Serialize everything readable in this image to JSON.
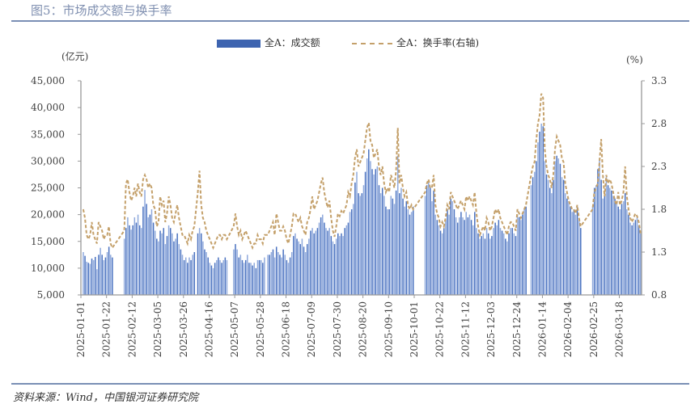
{
  "header": {
    "title": "图5：市场成交额与换手率"
  },
  "footer": {
    "source": "资料来源：Wind，中国银河证券研究院"
  },
  "colors": {
    "bar": "#4a72c0",
    "line": "#c4a06a",
    "axis": "#999999",
    "title": "#7f8fb0"
  },
  "chart_data": {
    "type": "bar+line",
    "left_unit": "(亿元)",
    "right_unit": "(%)",
    "legend": {
      "placement": "top-center",
      "entries": [
        "全A：成交额",
        "全A：换手率(右轴)"
      ]
    },
    "y_left": {
      "range": [
        5000,
        45000
      ],
      "ticks": [
        "5,000",
        "10,000",
        "15,000",
        "20,000",
        "25,000",
        "30,000",
        "35,000",
        "40,000",
        "45,000"
      ]
    },
    "y_right": {
      "range": [
        0.8,
        3.3
      ],
      "ticks": [
        "0.8",
        "1.3",
        "1.8",
        "2.3",
        "2.8",
        "3.3"
      ]
    },
    "x_tick_labels": [
      "2025-01-01",
      "2025-01-22",
      "2025-02-12",
      "2025-03-05",
      "2025-03-26",
      "2025-04-16",
      "2025-05-07",
      "2025-05-28",
      "2025-06-18",
      "2025-07-09",
      "2025-07-30",
      "2025-08-20",
      "2025-09-10",
      "2025-10-01",
      "2025-10-22",
      "2025-11-12",
      "2025-12-03",
      "2025-12-24",
      "2026-01-14",
      "2026-02-04",
      "2026-02-25",
      "2026-03-18"
    ],
    "grid": false,
    "x": [
      "2025-01-01",
      "2025-01-02",
      "2025-01-03",
      "2025-01-06",
      "2025-01-07",
      "2025-01-08",
      "2025-01-09",
      "2025-01-10",
      "2025-01-13",
      "2025-01-14",
      "2025-01-15",
      "2025-01-16",
      "2025-01-17",
      "2025-01-20",
      "2025-01-21",
      "2025-01-22",
      "2025-01-23",
      "2025-01-24",
      "2025-01-27",
      "2025-01-28",
      "2025-01-29",
      "2025-01-30",
      "2025-01-31",
      "2025-02-03",
      "2025-02-04",
      "2025-02-05",
      "2025-02-06",
      "2025-02-07",
      "2025-02-10",
      "2025-02-11",
      "2025-02-12",
      "2025-02-13",
      "2025-02-14",
      "2025-02-17",
      "2025-02-18",
      "2025-02-19",
      "2025-02-20",
      "2025-02-21",
      "2025-02-24",
      "2025-02-25",
      "2025-02-26",
      "2025-02-27",
      "2025-02-28",
      "2025-03-03",
      "2025-03-04",
      "2025-03-05",
      "2025-03-06",
      "2025-03-07",
      "2025-03-10",
      "2025-03-11",
      "2025-03-12",
      "2025-03-13",
      "2025-03-14",
      "2025-03-17",
      "2025-03-18",
      "2025-03-19",
      "2025-03-20",
      "2025-03-21",
      "2025-03-24",
      "2025-03-25",
      "2025-03-26",
      "2025-03-27",
      "2025-03-28",
      "2025-03-31",
      "2025-04-01",
      "2025-04-02",
      "2025-04-03",
      "2025-04-04",
      "2025-04-07",
      "2025-04-08",
      "2025-04-09",
      "2025-04-10",
      "2025-04-11",
      "2025-04-14",
      "2025-04-15",
      "2025-04-16",
      "2025-04-17",
      "2025-04-18",
      "2025-04-21",
      "2025-04-22",
      "2025-04-23",
      "2025-04-24",
      "2025-04-25",
      "2025-04-28",
      "2025-04-29",
      "2025-04-30",
      "2025-05-01",
      "2025-05-02",
      "2025-05-05",
      "2025-05-06",
      "2025-05-07",
      "2025-05-08",
      "2025-05-09",
      "2025-05-12",
      "2025-05-13",
      "2025-05-14",
      "2025-05-15",
      "2025-05-16",
      "2025-05-19",
      "2025-05-20",
      "2025-05-21",
      "2025-05-22",
      "2025-05-23",
      "2025-05-26",
      "2025-05-27",
      "2025-05-28",
      "2025-05-29",
      "2025-05-30",
      "2025-06-02",
      "2025-06-03",
      "2025-06-04",
      "2025-06-05",
      "2025-06-06",
      "2025-06-09",
      "2025-06-10",
      "2025-06-11",
      "2025-06-12",
      "2025-06-13",
      "2025-06-16",
      "2025-06-17",
      "2025-06-18",
      "2025-06-19",
      "2025-06-20",
      "2025-06-23",
      "2025-06-24",
      "2025-06-25",
      "2025-06-26",
      "2025-06-27",
      "2025-06-30",
      "2025-07-01",
      "2025-07-02",
      "2025-07-03",
      "2025-07-04",
      "2025-07-07",
      "2025-07-08",
      "2025-07-09",
      "2025-07-10",
      "2025-07-11",
      "2025-07-14",
      "2025-07-15",
      "2025-07-16",
      "2025-07-17",
      "2025-07-18",
      "2025-07-21",
      "2025-07-22",
      "2025-07-23",
      "2025-07-24",
      "2025-07-25",
      "2025-07-28",
      "2025-07-29",
      "2025-07-30",
      "2025-07-31",
      "2025-08-01",
      "2025-08-04",
      "2025-08-05",
      "2025-08-06",
      "2025-08-07",
      "2025-08-08",
      "2025-08-11",
      "2025-08-12",
      "2025-08-13",
      "2025-08-14",
      "2025-08-15",
      "2025-08-18",
      "2025-08-19",
      "2025-08-20",
      "2025-08-21",
      "2025-08-22",
      "2025-08-25",
      "2025-08-26",
      "2025-08-27",
      "2025-08-28",
      "2025-08-29",
      "2025-09-01",
      "2025-09-02",
      "2025-09-03",
      "2025-09-04",
      "2025-09-05",
      "2025-09-08",
      "2025-09-09",
      "2025-09-10",
      "2025-09-11",
      "2025-09-12",
      "2025-09-15",
      "2025-09-16",
      "2025-09-17",
      "2025-09-18",
      "2025-09-19",
      "2025-09-22",
      "2025-09-23",
      "2025-09-24",
      "2025-09-25",
      "2025-09-26",
      "2025-09-29",
      "2025-09-30",
      "2025-10-01",
      "2025-10-02",
      "2025-10-03",
      "2025-10-06",
      "2025-10-07",
      "2025-10-08",
      "2025-10-09",
      "2025-10-10",
      "2025-10-13",
      "2025-10-14",
      "2025-10-15",
      "2025-10-16",
      "2025-10-17",
      "2025-10-20",
      "2025-10-21",
      "2025-10-22",
      "2025-10-23",
      "2025-10-24",
      "2025-10-27",
      "2025-10-28",
      "2025-10-29",
      "2025-10-30",
      "2025-10-31",
      "2025-11-03",
      "2025-11-04",
      "2025-11-05",
      "2025-11-06",
      "2025-11-07",
      "2025-11-10",
      "2025-11-11",
      "2025-11-12",
      "2025-11-13",
      "2025-11-14",
      "2025-11-17",
      "2025-11-18",
      "2025-11-19",
      "2025-11-20",
      "2025-11-21",
      "2025-11-24",
      "2025-11-25",
      "2025-11-26",
      "2025-11-27",
      "2025-11-28",
      "2025-12-01",
      "2025-12-02",
      "2025-12-03",
      "2025-12-04",
      "2025-12-05",
      "2025-12-08",
      "2025-12-09",
      "2025-12-10",
      "2025-12-11",
      "2025-12-12",
      "2025-12-15",
      "2025-12-16",
      "2025-12-17",
      "2025-12-18",
      "2025-12-19",
      "2025-12-22",
      "2025-12-23",
      "2025-12-24",
      "2025-12-25",
      "2025-12-26",
      "2025-12-29",
      "2025-12-30",
      "2025-12-31",
      "2026-01-01",
      "2026-01-02",
      "2026-01-05",
      "2026-01-06",
      "2026-01-07",
      "2026-01-08",
      "2026-01-09",
      "2026-01-12",
      "2026-01-13",
      "2026-01-14",
      "2026-01-15",
      "2026-01-16",
      "2026-01-19",
      "2026-01-20",
      "2026-01-21",
      "2026-01-22",
      "2026-01-23",
      "2026-01-26",
      "2026-01-27",
      "2026-01-28",
      "2026-01-29",
      "2026-01-30",
      "2026-02-02",
      "2026-02-03",
      "2026-02-04",
      "2026-02-05",
      "2026-02-06",
      "2026-02-09",
      "2026-02-10",
      "2026-02-11",
      "2026-02-12",
      "2026-02-13",
      "2026-02-16",
      "2026-02-17",
      "2026-02-18",
      "2026-02-19",
      "2026-02-20",
      "2026-02-23",
      "2026-02-24",
      "2026-02-25",
      "2026-02-26",
      "2026-02-27",
      "2026-03-02",
      "2026-03-03",
      "2026-03-04",
      "2026-03-05",
      "2026-03-06",
      "2026-03-09",
      "2026-03-10",
      "2026-03-11",
      "2026-03-12",
      "2026-03-13",
      "2026-03-16",
      "2026-03-17",
      "2026-03-18",
      "2026-03-19",
      "2026-03-20",
      "2026-03-23",
      "2026-03-24",
      "2026-03-25",
      "2026-03-26",
      "2026-03-27",
      "2026-03-30",
      "2026-03-31",
      "2026-04-01",
      "2026-04-02",
      "2026-04-03"
    ],
    "series": [
      {
        "name": "全A：成交额",
        "type": "bar",
        "axis": "left",
        "values": [
          null,
          13000,
          12300,
          11200,
          11000,
          10800,
          11800,
          11500,
          12100,
          9800,
          12500,
          13800,
          12500,
          11500,
          12000,
          13000,
          14000,
          12500,
          12000,
          null,
          null,
          null,
          null,
          null,
          null,
          15500,
          17500,
          19500,
          18000,
          17200,
          18000,
          19500,
          18500,
          20000,
          18000,
          17500,
          21500,
          24600,
          22000,
          19500,
          20000,
          21000,
          18500,
          17000,
          15500,
          15000,
          17000,
          16500,
          17500,
          14500,
          16000,
          18000,
          17500,
          16500,
          15000,
          15500,
          16500,
          14500,
          13500,
          12500,
          11500,
          12000,
          11000,
          12000,
          11500,
          12500,
          13000,
          null,
          16500,
          17500,
          16500,
          15000,
          13500,
          13000,
          12000,
          11000,
          10500,
          10000,
          11000,
          11500,
          12000,
          11500,
          11000,
          11500,
          12000,
          11500,
          null,
          null,
          null,
          13500,
          14500,
          13500,
          12000,
          12500,
          11500,
          11000,
          11500,
          12500,
          11000,
          11000,
          10500,
          11000,
          10000,
          11500,
          11500,
          11500,
          11000,
          12000,
          null,
          12500,
          12500,
          13000,
          13500,
          12000,
          14000,
          13000,
          12500,
          12000,
          13500,
          12500,
          11500,
          11000,
          12000,
          13000,
          16000,
          16500,
          15500,
          15000,
          14500,
          15500,
          14000,
          13000,
          14500,
          15500,
          17000,
          17500,
          16500,
          17000,
          17500,
          18500,
          19500,
          20000,
          18500,
          17500,
          17000,
          17500,
          16000,
          15000,
          14500,
          15500,
          16500,
          16000,
          16500,
          16000,
          17500,
          18000,
          18500,
          20500,
          21000,
          22000,
          26000,
          28000,
          24000,
          23500,
          24000,
          25500,
          28000,
          30500,
          32200,
          30000,
          28500,
          27500,
          28500,
          29000,
          25500,
          24000,
          25000,
          23500,
          21500,
          21000,
          21000,
          23500,
          23000,
          22000,
          24500,
          31000,
          24000,
          25000,
          23000,
          21500,
          22500,
          21000,
          20000,
          20500,
          21500,
          null,
          null,
          null,
          null,
          null,
          null,
          23500,
          25500,
          26000,
          25000,
          22500,
          24500,
          20000,
          19000,
          18000,
          17000,
          16500,
          17500,
          19000,
          21000,
          20000,
          23000,
          22500,
          21000,
          19500,
          18500,
          19500,
          20500,
          19500,
          19000,
          20500,
          19500,
          20000,
          19000,
          18000,
          20500,
          17500,
          16500,
          15500,
          16000,
          16500,
          15500,
          17500,
          16500,
          15500,
          16000,
          17500,
          18500,
          18000,
          19000,
          17500,
          17000,
          16500,
          15500,
          15000,
          16500,
          17500,
          17500,
          16500,
          16000,
          20000,
          19500,
          19000,
          20000,
          21000,
          21500,
          null,
          null,
          25500,
          27000,
          28000,
          30000,
          33500,
          35500,
          37000,
          36500,
          30000,
          27500,
          26500,
          25000,
          24000,
          26500,
          30000,
          31000,
          30500,
          29500,
          27000,
          26500,
          24000,
          23000,
          22500,
          21500,
          20500,
          21000,
          20000,
          21500,
          19000,
          17500,
          null,
          null,
          null,
          null,
          null,
          null,
          21500,
          25000,
          25500,
          28500,
          30500,
          26500,
          23000,
          24000,
          27000,
          25500,
          25000,
          24500,
          23500,
          23000,
          22000,
          21500,
          21000,
          22000,
          22500,
          24000,
          21000,
          20000,
          18500,
          18000,
          18500,
          19000,
          19500,
          18000,
          16500
        ]
      },
      {
        "name": "全A：换手率(右轴)",
        "type": "line",
        "axis": "right",
        "values": [
          null,
          1.8,
          1.7,
          1.5,
          1.45,
          1.5,
          1.65,
          1.5,
          1.45,
          1.4,
          1.65,
          1.6,
          1.55,
          1.45,
          1.5,
          1.5,
          1.6,
          1.4,
          1.35,
          null,
          null,
          null,
          null,
          null,
          null,
          1.55,
          2.1,
          2.15,
          2.0,
          1.9,
          1.95,
          2.05,
          1.95,
          2.1,
          2.0,
          1.95,
          2.15,
          2.2,
          2.15,
          2.05,
          2.1,
          2.05,
          1.85,
          1.8,
          1.6,
          1.65,
          1.95,
          1.85,
          1.9,
          1.65,
          1.75,
          1.95,
          1.85,
          1.7,
          1.65,
          1.75,
          1.85,
          1.7,
          1.6,
          1.5,
          1.5,
          1.45,
          1.4,
          1.5,
          1.45,
          1.55,
          1.6,
          null,
          2.0,
          2.25,
          1.85,
          1.7,
          1.65,
          1.55,
          1.5,
          1.45,
          1.4,
          1.35,
          1.4,
          1.45,
          1.5,
          1.5,
          1.45,
          1.5,
          1.5,
          1.45,
          null,
          null,
          null,
          1.6,
          1.75,
          1.6,
          1.5,
          1.55,
          1.45,
          1.5,
          1.55,
          1.5,
          1.45,
          1.4,
          1.35,
          1.4,
          1.4,
          1.5,
          1.45,
          1.45,
          1.4,
          1.5,
          null,
          1.5,
          1.55,
          1.6,
          1.65,
          1.5,
          1.75,
          1.65,
          1.55,
          1.55,
          1.6,
          1.55,
          1.45,
          1.4,
          1.5,
          1.6,
          1.75,
          1.75,
          1.7,
          1.65,
          1.7,
          1.6,
          1.55,
          1.5,
          1.65,
          1.7,
          1.8,
          1.95,
          1.8,
          1.85,
          1.9,
          2.0,
          2.1,
          2.17,
          2.0,
          1.9,
          1.82,
          1.9,
          1.7,
          1.55,
          1.48,
          1.6,
          1.75,
          1.72,
          1.78,
          1.75,
          1.8,
          1.85,
          2.0,
          1.95,
          2.1,
          2.2,
          2.4,
          2.5,
          2.3,
          2.35,
          2.4,
          2.45,
          2.6,
          2.75,
          2.81,
          2.6,
          2.55,
          2.4,
          2.45,
          2.5,
          2.3,
          2.2,
          2.3,
          2.1,
          2.0,
          2.05,
          2.0,
          2.2,
          2.15,
          2.05,
          2.25,
          2.75,
          2.1,
          2.2,
          2.05,
          1.95,
          2.0,
          1.85,
          1.8,
          1.85,
          1.8,
          null,
          null,
          null,
          null,
          null,
          null,
          2.0,
          2.1,
          2.15,
          2.05,
          2.05,
          2.2,
          1.85,
          1.75,
          1.7,
          1.6,
          1.65,
          1.6,
          1.7,
          1.85,
          1.8,
          2.0,
          1.95,
          1.9,
          1.85,
          1.8,
          1.85,
          1.9,
          1.85,
          1.8,
          1.95,
          1.9,
          1.95,
          1.9,
          1.85,
          2.0,
          1.75,
          1.6,
          1.5,
          1.55,
          1.6,
          1.55,
          1.7,
          1.65,
          1.55,
          1.6,
          1.7,
          1.8,
          1.75,
          1.8,
          1.7,
          1.65,
          1.6,
          1.55,
          1.5,
          1.6,
          1.65,
          1.65,
          1.6,
          1.55,
          1.8,
          1.75,
          1.7,
          1.75,
          1.8,
          1.85,
          null,
          null,
          2.2,
          2.3,
          2.35,
          2.6,
          2.8,
          2.9,
          3.15,
          3.1,
          2.5,
          2.3,
          2.2,
          2.15,
          2.05,
          2.2,
          2.5,
          2.65,
          2.6,
          2.55,
          2.4,
          2.35,
          2.1,
          2.0,
          1.9,
          1.85,
          1.8,
          1.8,
          1.75,
          1.85,
          1.7,
          1.6,
          null,
          null,
          null,
          null,
          null,
          null,
          1.8,
          2.0,
          2.05,
          2.1,
          2.35,
          2.62,
          2.2,
          1.95,
          2.2,
          2.1,
          2.15,
          2.1,
          2.0,
          1.9,
          1.85,
          2.0,
          1.85,
          1.9,
          2.0,
          2.3,
          1.95,
          1.8,
          1.7,
          1.65,
          1.7,
          1.75,
          1.72,
          1.65,
          1.52
        ]
      }
    ]
  }
}
